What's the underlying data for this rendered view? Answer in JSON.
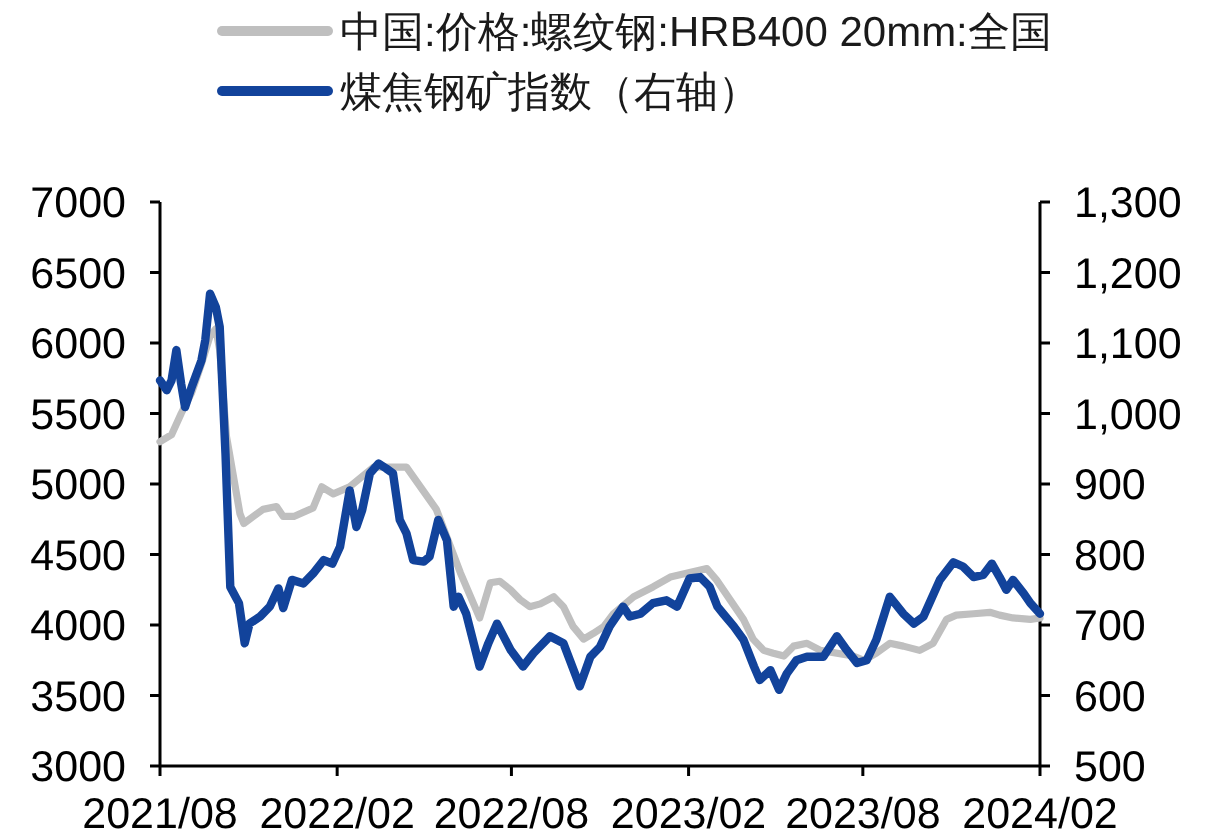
{
  "chart_data": {
    "type": "line",
    "series": [
      {
        "name": "中国:价格:螺纹钢:HRB400 20mm:全国",
        "color": "#bfbfbf",
        "x": [
          "2021-08-01",
          "2021-08-13",
          "2021-08-23",
          "2021-09-03",
          "2021-09-13",
          "2021-09-22",
          "2021-09-28",
          "2021-10-02",
          "2021-10-09",
          "2021-10-23",
          "2021-10-27",
          "2021-11-06",
          "2021-11-16",
          "2021-11-30",
          "2021-12-07",
          "2021-12-18",
          "2022-01-07",
          "2022-01-16",
          "2022-01-28",
          "2022-02-14",
          "2022-03-11",
          "2022-04-14",
          "2022-05-15",
          "2022-06-09",
          "2022-06-29",
          "2022-07-10",
          "2022-07-20",
          "2022-07-31",
          "2022-08-10",
          "2022-08-20",
          "2022-08-31",
          "2022-09-14",
          "2022-09-24",
          "2022-10-04",
          "2022-10-15",
          "2022-10-25",
          "2022-11-05",
          "2022-11-15",
          "2022-12-06",
          "2022-12-26",
          "2023-01-13",
          "2023-02-20",
          "2023-03-02",
          "2023-03-16",
          "2023-03-30",
          "2023-04-09",
          "2023-04-20",
          "2023-04-30",
          "2023-05-11",
          "2023-05-21",
          "2023-06-04",
          "2023-06-18",
          "2023-07-22",
          "2023-08-02",
          "2023-08-15",
          "2023-08-29",
          "2023-09-12",
          "2023-09-29",
          "2023-10-13",
          "2023-10-27",
          "2023-11-06",
          "2023-11-24",
          "2023-12-11",
          "2023-12-21",
          "2024-01-04",
          "2024-01-22",
          "2024-02-01"
        ],
        "values": [
          5300,
          5350,
          5500,
          5650,
          5850,
          6050,
          6100,
          5950,
          5340,
          4790,
          4720,
          4770,
          4820,
          4840,
          4770,
          4770,
          4830,
          4980,
          4930,
          4980,
          5120,
          5120,
          4820,
          4370,
          4050,
          4300,
          4310,
          4250,
          4180,
          4130,
          4150,
          4200,
          4130,
          3990,
          3900,
          3940,
          3990,
          4080,
          4200,
          4270,
          4340,
          4400,
          4320,
          4180,
          4040,
          3900,
          3820,
          3800,
          3780,
          3850,
          3870,
          3820,
          3780,
          3750,
          3800,
          3870,
          3850,
          3820,
          3870,
          4040,
          4070,
          4080,
          4090,
          4070,
          4050,
          4040,
          4050
        ]
      },
      {
        "name": "煤焦钢矿指数（右轴）",
        "color": "#12439b",
        "axis": "y2",
        "x": [
          "2021-08-01",
          "2021-08-08",
          "2021-08-13",
          "2021-08-18",
          "2021-08-23",
          "2021-08-27",
          "2021-09-03",
          "2021-09-13",
          "2021-09-17",
          "2021-09-22",
          "2021-09-28",
          "2021-10-02",
          "2021-10-08",
          "2021-10-13",
          "2021-10-22",
          "2021-10-28",
          "2021-11-02",
          "2021-11-13",
          "2021-11-23",
          "2021-12-02",
          "2021-12-07",
          "2021-12-16",
          "2021-12-28",
          "2022-01-07",
          "2022-01-18",
          "2022-01-27",
          "2022-02-04",
          "2022-02-14",
          "2022-02-21",
          "2022-02-27",
          "2022-03-07",
          "2022-03-16",
          "2022-03-24",
          "2022-03-31",
          "2022-04-07",
          "2022-04-14",
          "2022-04-21",
          "2022-05-02",
          "2022-05-08",
          "2022-05-17",
          "2022-05-26",
          "2022-06-02",
          "2022-06-07",
          "2022-06-15",
          "2022-06-29",
          "2022-07-08",
          "2022-07-17",
          "2022-07-31",
          "2022-08-13",
          "2022-08-24",
          "2022-09-10",
          "2022-09-24",
          "2022-10-11",
          "2022-10-22",
          "2022-11-01",
          "2022-11-11",
          "2022-11-25",
          "2022-12-02",
          "2022-12-13",
          "2022-12-26",
          "2023-01-09",
          "2023-01-20",
          "2023-02-02",
          "2023-02-13",
          "2023-02-23",
          "2023-03-03",
          "2023-03-09",
          "2023-03-20",
          "2023-03-30",
          "2023-04-10",
          "2023-04-16",
          "2023-04-27",
          "2023-05-06",
          "2023-05-14",
          "2023-05-24",
          "2023-06-04",
          "2023-06-21",
          "2023-07-05",
          "2023-07-15",
          "2023-07-26",
          "2023-08-05",
          "2023-08-15",
          "2023-08-29",
          "2023-09-12",
          "2023-09-23",
          "2023-10-03",
          "2023-10-20",
          "2023-11-03",
          "2023-11-13",
          "2023-11-24",
          "2023-12-04",
          "2023-12-13",
          "2023-12-21",
          "2023-12-28",
          "2024-01-04",
          "2024-01-15",
          "2024-01-22",
          "2024-02-01"
        ],
        "values": [
          1047,
          1033,
          1047,
          1090,
          1042,
          1009,
          1038,
          1075,
          1104,
          1170,
          1151,
          1123,
          943,
          754,
          731,
          674,
          702,
          712,
          726,
          752,
          724,
          764,
          759,
          773,
          792,
          787,
          811,
          891,
          839,
          863,
          915,
          929,
          922,
          915,
          849,
          830,
          792,
          790,
          797,
          849,
          820,
          726,
          740,
          716,
          641,
          674,
          702,
          665,
          641,
          660,
          684,
          674,
          613,
          655,
          669,
          698,
          726,
          712,
          716,
          731,
          735,
          726,
          766,
          768,
          754,
          726,
          716,
          698,
          679,
          641,
          622,
          636,
          608,
          631,
          650,
          655,
          655,
          684,
          665,
          646,
          650,
          679,
          740,
          716,
          702,
          712,
          764,
          789,
          783,
          768,
          771,
          787,
          768,
          750,
          764,
          745,
          731,
          716
        ]
      }
    ],
    "xlim": [
      "2021-08-01",
      "2024-02-01"
    ],
    "xticks": [
      {
        "value": "2021-08-01",
        "label": "2021/08"
      },
      {
        "value": "2022-02-01",
        "label": "2022/02"
      },
      {
        "value": "2022-08-01",
        "label": "2022/08"
      },
      {
        "value": "2023-02-01",
        "label": "2023/02"
      },
      {
        "value": "2023-08-01",
        "label": "2023/08"
      },
      {
        "value": "2024-02-01",
        "label": "2024/02"
      }
    ],
    "ylim": [
      3000,
      7000
    ],
    "yticks": [
      3000,
      3500,
      4000,
      4500,
      5000,
      5500,
      6000,
      6500,
      7000
    ],
    "y2lim": [
      500,
      1300
    ],
    "y2ticks": [
      500,
      600,
      700,
      800,
      900,
      {
        "value": 1000,
        "label": "1,000"
      },
      {
        "value": 1100,
        "label": "1,100"
      },
      {
        "value": 1200,
        "label": "1,200"
      },
      {
        "value": 1300,
        "label": "1,300"
      }
    ],
    "legend": "top"
  }
}
